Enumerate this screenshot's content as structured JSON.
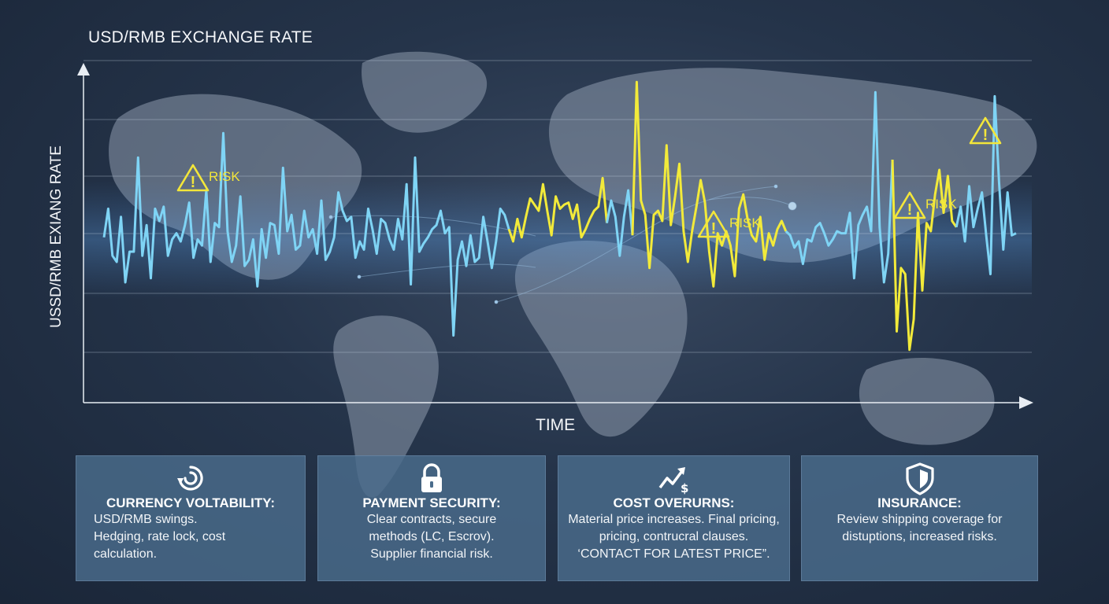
{
  "chart_data": {
    "type": "line",
    "title": "USD/RMB EXCHANGE RATE",
    "xlabel": "TIME",
    "ylabel": "USSD/RMB EXIANG RATE",
    "grid": true,
    "colors": {
      "line": "#7fd4f5",
      "risk_line": "#f2ea3a",
      "warning": "#f3e63a"
    },
    "series": [
      {
        "values": [
          0.12,
          0.26,
          0.03,
          0.0,
          0.22,
          -0.1,
          0.05,
          0.05,
          0.51,
          0.03,
          0.18,
          -0.08,
          0.26,
          0.2,
          0.27,
          0.03,
          0.11,
          0.14,
          0.1,
          0.18,
          0.29,
          0.02,
          0.11,
          0.08,
          0.35,
          0.0,
          0.19,
          0.17,
          0.63,
          0.15,
          0.0,
          0.08,
          0.32,
          -0.02,
          0.01,
          0.11,
          -0.12,
          0.16,
          0.02,
          0.19,
          0.18,
          0.04,
          0.46,
          0.15,
          0.23,
          0.06,
          0.08,
          0.25,
          0.12,
          0.16,
          0.04,
          0.3,
          0.01,
          0.05,
          0.12,
          0.34,
          0.25,
          0.2,
          0.22,
          0.02,
          0.1,
          0.06,
          0.26,
          0.16,
          0.04,
          0.21,
          0.19,
          0.11,
          0.06,
          0.21,
          0.11,
          0.38,
          -0.11,
          0.51,
          0.05,
          0.09,
          0.12,
          0.16,
          0.18,
          0.25,
          0.14,
          0.17,
          -0.36,
          0.01,
          0.1,
          -0.02,
          0.13,
          0.0,
          0.02,
          0.22,
          0.1,
          -0.03,
          0.1,
          0.26,
          0.23,
          0.16,
          0.1,
          0.21,
          0.12,
          0.22,
          0.31,
          0.28,
          0.25,
          0.38,
          0.25,
          0.13,
          0.32,
          0.26,
          0.28,
          0.29,
          0.21,
          0.28,
          0.12,
          0.16,
          0.21,
          0.25,
          0.27,
          0.41,
          0.19,
          0.3,
          0.22,
          0.03,
          0.22,
          0.35,
          0.13,
          0.88,
          0.3,
          0.23,
          -0.03,
          0.23,
          0.25,
          0.2,
          0.57,
          0.18,
          0.32,
          0.48,
          0.15,
          0.0,
          0.15,
          0.27,
          0.4,
          0.29,
          0.05,
          -0.12,
          0.14,
          0.08,
          0.15,
          0.08,
          -0.07,
          0.26,
          0.33,
          0.21,
          0.13,
          0.1,
          0.22,
          0.01,
          0.14,
          0.08,
          0.16,
          0.2,
          0.15,
          0.13,
          0.07,
          0.1,
          -0.01,
          0.11,
          0.1,
          0.17,
          0.19,
          0.14,
          0.08,
          0.11,
          0.15,
          0.14,
          0.14,
          0.24,
          -0.08,
          0.18,
          0.23,
          0.27,
          0.15,
          0.83,
          0.17,
          -0.1,
          0.04,
          0.5,
          -0.34,
          -0.03,
          -0.06,
          -0.43,
          -0.28,
          0.24,
          -0.14,
          0.19,
          0.15,
          0.33,
          0.45,
          0.24,
          0.42,
          0.2,
          0.17,
          0.27,
          0.1,
          0.37,
          0.17,
          0.26,
          0.34,
          0.13,
          -0.06,
          0.81,
          0.39,
          0.06,
          0.34,
          0.13,
          0.14
        ]
      }
    ],
    "annotations": [
      {
        "label": "RISK"
      },
      {
        "label": "RISK"
      },
      {
        "label": "RISK"
      },
      {
        "label": ""
      }
    ]
  },
  "cards": [
    {
      "icon": "cycle-icon",
      "title": "CURRENCY VOLTABILITY:",
      "lines": [
        "USD/RMB swings.",
        "Hedging, rate lock, cost",
        "calculation."
      ]
    },
    {
      "icon": "lock-icon",
      "title": "PAYMENT SECURITY:",
      "lines": [
        "Clear contracts, secure",
        "methods (LC, Escrov).",
        "Supplier financial risk."
      ]
    },
    {
      "icon": "trend-dollar-icon",
      "title": "COST OVERURNS:",
      "lines": [
        "Material price increases. Final pricing,",
        "pricing, contrucral clauses.",
        "‘CONTACT FOR LATEST PRICE”."
      ]
    },
    {
      "icon": "shield-icon",
      "title": "INSURANCE:",
      "lines": [
        "Review shipping coverage for",
        "distuptions, increased risks."
      ]
    }
  ]
}
